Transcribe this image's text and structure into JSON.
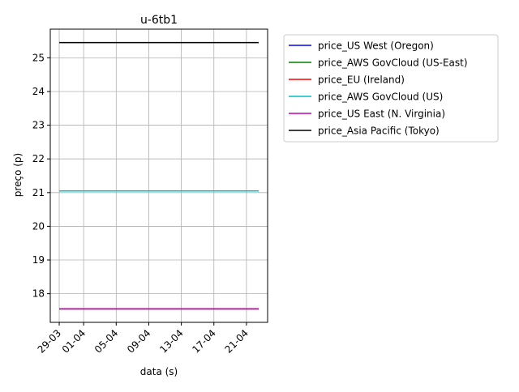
{
  "chart_data": {
    "type": "line",
    "title": "u-6tb1",
    "xlabel": "data (s)",
    "ylabel": "preço (p)",
    "x_ticks": [
      "29-03",
      "01-04",
      "05-04",
      "09-04",
      "13-04",
      "17-04",
      "21-04"
    ],
    "x_tick_days": [
      0,
      3,
      7,
      11,
      15,
      19,
      23
    ],
    "x_range": [
      -1.1,
      25.6
    ],
    "x_span": [
      0,
      24.5
    ],
    "y_ticks": [
      18,
      19,
      20,
      21,
      22,
      23,
      24,
      25
    ],
    "ylim": [
      17.15,
      25.85
    ],
    "grid": true,
    "legend_position": "outside upper right",
    "series": [
      {
        "name": "price_US West (Oregon)",
        "color": "#0000ff",
        "value": 17.55
      },
      {
        "name": "price_AWS GovCloud (US-East)",
        "color": "#008000",
        "value": 21.05
      },
      {
        "name": "price_EU (Ireland)",
        "color": "#ff0000",
        "value": 17.55
      },
      {
        "name": "price_AWS GovCloud (US)",
        "color": "#00bfbf",
        "value": 21.05
      },
      {
        "name": "price_US East (N. Virginia)",
        "color": "#bf00bf",
        "value": 17.55
      },
      {
        "name": "price_Asia Pacific (Tokyo)",
        "color": "#000000",
        "value": 25.45
      }
    ]
  }
}
